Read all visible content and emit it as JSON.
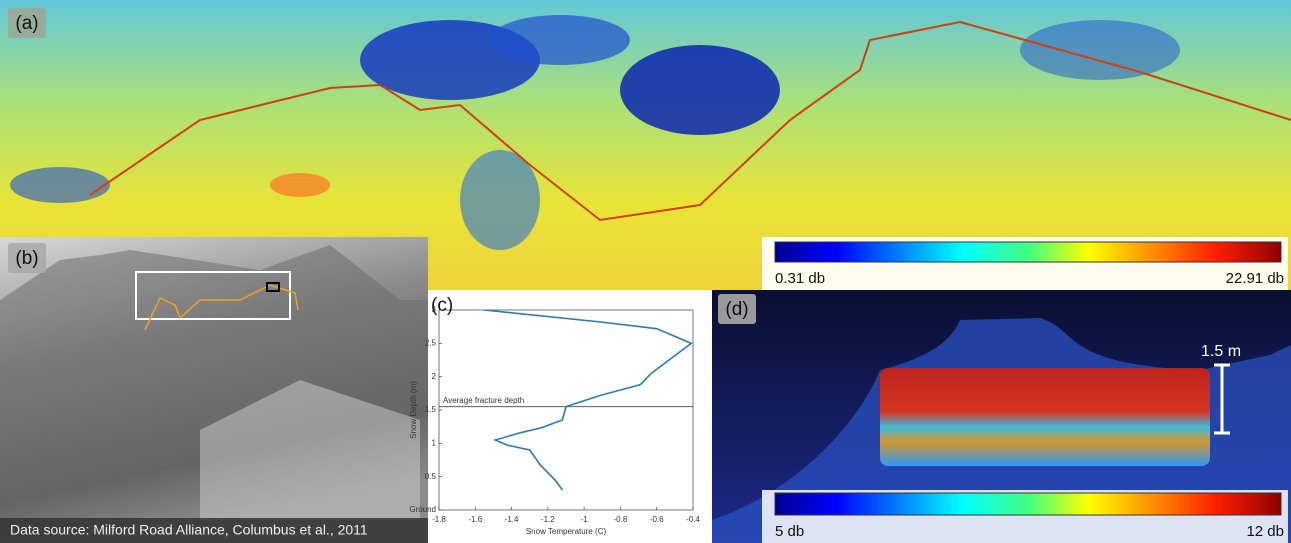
{
  "panels": {
    "a": {
      "label": "(a)",
      "colorbar_min": "0.31 db",
      "colorbar_max": "22.91 db"
    },
    "b": {
      "label": "(b)",
      "source": "Data source: Milford Road Alliance, Columbus et al., 2011"
    },
    "c": {
      "label": "(c)"
    },
    "d": {
      "label": "(d)",
      "scale": "1.5 m",
      "colorbar_min": "5 db",
      "colorbar_max": "12 db"
    }
  },
  "chart_data": {
    "type": "line",
    "xlabel": "Snow Temperature (C)",
    "ylabel": "Snow Depth (m)",
    "x": [
      -1.55,
      -0.91,
      -0.6,
      -0.41,
      -0.63,
      -0.69,
      -0.91,
      -1.1,
      -1.12,
      -1.24,
      -1.35,
      -1.49,
      -1.42,
      -1.3,
      -1.24,
      -1.16,
      -1.12
    ],
    "values": [
      3,
      2.82,
      2.72,
      2.5,
      2.05,
      1.88,
      1.72,
      1.55,
      1.35,
      1.23,
      1.16,
      1.05,
      0.97,
      0.9,
      0.67,
      0.45,
      0.3
    ],
    "color": "#2a7ab8",
    "xlim": [
      -1.8,
      -0.4
    ],
    "xticks": [
      -1.8,
      -1.6,
      -1.4,
      -1.2,
      -1,
      -0.8,
      -0.6,
      -0.4
    ],
    "ylim": [
      0,
      3
    ],
    "yticks": [
      {
        "value": 0,
        "label": "Ground"
      },
      0.5,
      1,
      1.5,
      2,
      2.5,
      3
    ],
    "annotation": {
      "text": "Average fracture depth",
      "y": 1.55
    }
  }
}
